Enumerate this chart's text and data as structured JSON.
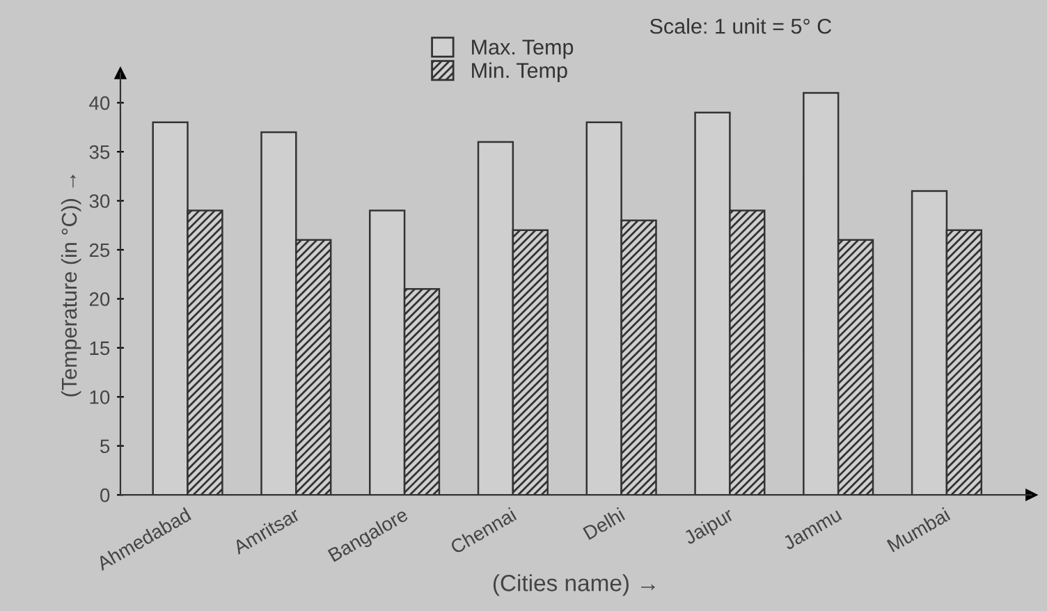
{
  "chart_data": {
    "type": "bar",
    "categories": [
      "Ahmedabad",
      "Amritsar",
      "Bangalore",
      "Chennai",
      "Delhi",
      "Jaipur",
      "Jammu",
      "Mumbai"
    ],
    "series": [
      {
        "name": "Max. Temp",
        "color": "#cfcfcf",
        "values": [
          38,
          37,
          29,
          36,
          38,
          39,
          41,
          31
        ]
      },
      {
        "name": "Min. Temp",
        "color": "#333333",
        "values": [
          29,
          26,
          21,
          27,
          28,
          29,
          26,
          27
        ]
      }
    ],
    "xlabel": "(Cities name) →",
    "ylabel": "(Temperature (in °C)) →",
    "annotations": [
      "Scale: 1 unit = 5° C"
    ],
    "ylim": [
      0,
      43
    ],
    "yticks": [
      0,
      5,
      10,
      15,
      20,
      25,
      30,
      35,
      40
    ],
    "grid": false,
    "legend": "top"
  }
}
